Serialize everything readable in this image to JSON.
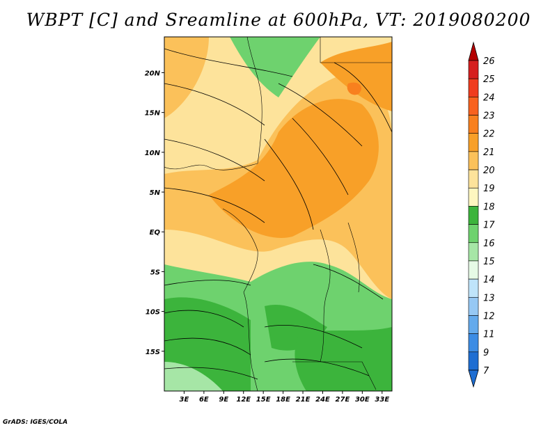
{
  "title": "WBPT [C] and Sreamline at 600hPa, VT: 2019080200",
  "credit": "GrADS: IGES/COLA",
  "map": {
    "lat_ticks": [
      "20N",
      "15N",
      "10N",
      "5N",
      "EQ",
      "5S",
      "10S",
      "15S"
    ],
    "lon_ticks": [
      "3E",
      "6E",
      "9E",
      "12E",
      "15E",
      "18E",
      "21E",
      "24E",
      "27E",
      "30E",
      "33E"
    ],
    "lat_range": [
      -20,
      24.5
    ],
    "lon_range": [
      0,
      34.5
    ]
  },
  "colorbar": {
    "levels": [
      "26",
      "25",
      "24",
      "23",
      "22",
      "21",
      "20",
      "19",
      "18",
      "17",
      "16",
      "15",
      "14",
      "13",
      "12",
      "11",
      "9",
      "7"
    ],
    "colors": [
      "#b40000",
      "#d61f1f",
      "#f03c1e",
      "#f8621e",
      "#f8801e",
      "#f8a028",
      "#fbc15a",
      "#fde39b",
      "#fdf6c0",
      "#3cb43c",
      "#6ed26e",
      "#a6e6a6",
      "#e6fae6",
      "#bfe4fa",
      "#96c8f4",
      "#64aaec",
      "#3c8ce4",
      "#1e6ed2"
    ]
  }
}
